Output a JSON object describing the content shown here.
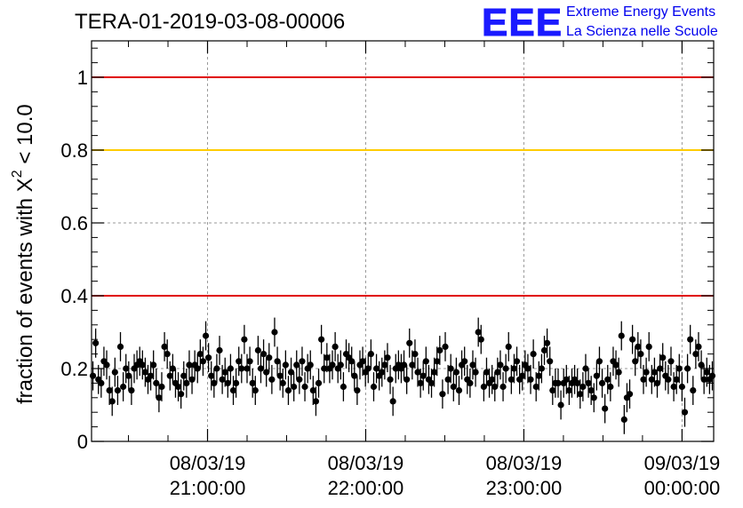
{
  "header": {
    "title": "TERA-01-2019-03-08-00006",
    "logo_mark": "EEE",
    "logo_line1": "Extreme Energy Events",
    "logo_line2": "La Scienza nelle Scuole"
  },
  "colors": {
    "red_line": "#e00000",
    "yellow_line": "#ffcc00",
    "points": "#000000",
    "grid": "#999999",
    "logo": "#1a1aff"
  },
  "chart_data": {
    "type": "scatter",
    "title": "TERA-01-2019-03-08-00006",
    "ylabel_main": "fraction of events with X",
    "ylabel_sup": "2",
    "ylabel_tail": " < 10.0",
    "xlabel": "",
    "x_start_minutes": 16,
    "x_end_minutes": 252,
    "ylim": [
      0,
      1.1
    ],
    "yticks": [
      {
        "value": 0,
        "label": "0"
      },
      {
        "value": 0.2,
        "label": "0.2"
      },
      {
        "value": 0.4,
        "label": "0.4"
      },
      {
        "value": 0.6,
        "label": "0.6"
      },
      {
        "value": 0.8,
        "label": "0.8"
      },
      {
        "value": 1,
        "label": "1"
      }
    ],
    "xticks": [
      {
        "minutes": 60,
        "date": "08/03/19",
        "time": "21:00:00"
      },
      {
        "minutes": 120,
        "date": "08/03/19",
        "time": "22:00:00"
      },
      {
        "minutes": 180,
        "date": "08/03/19",
        "time": "23:00:00"
      },
      {
        "minutes": 240,
        "date": "09/03/19",
        "time": "00:00:00"
      }
    ],
    "reference_lines": [
      {
        "y": 1.0,
        "color": "red"
      },
      {
        "y": 0.8,
        "color": "yellow"
      },
      {
        "y": 0.4,
        "color": "red"
      }
    ],
    "grid": true,
    "series": [
      {
        "error": 0.04,
        "y": [
          0.18,
          0.27,
          0.17,
          0.16,
          0.22,
          0.21,
          0.14,
          0.11,
          0.19,
          0.14,
          0.26,
          0.15,
          0.2,
          0.18,
          0.14,
          0.2,
          0.21,
          0.22,
          0.21,
          0.19,
          0.17,
          0.18,
          0.21,
          0.16,
          0.12,
          0.15,
          0.26,
          0.24,
          0.18,
          0.2,
          0.16,
          0.15,
          0.13,
          0.18,
          0.16,
          0.21,
          0.17,
          0.21,
          0.2,
          0.24,
          0.22,
          0.29,
          0.23,
          0.18,
          0.16,
          0.2,
          0.25,
          0.17,
          0.19,
          0.16,
          0.2,
          0.14,
          0.16,
          0.22,
          0.2,
          0.28,
          0.2,
          0.22,
          0.16,
          0.14,
          0.25,
          0.2,
          0.24,
          0.19,
          0.23,
          0.17,
          0.3,
          0.22,
          0.18,
          0.16,
          0.21,
          0.14,
          0.19,
          0.15,
          0.21,
          0.17,
          0.22,
          0.15,
          0.2,
          0.21,
          0.14,
          0.11,
          0.16,
          0.28,
          0.2,
          0.23,
          0.2,
          0.21,
          0.26,
          0.2,
          0.21,
          0.15,
          0.24,
          0.23,
          0.22,
          0.18,
          0.14,
          0.21,
          0.22,
          0.19,
          0.2,
          0.24,
          0.15,
          0.2,
          0.18,
          0.19,
          0.21,
          0.23,
          0.17,
          0.11,
          0.2,
          0.21,
          0.2,
          0.21,
          0.17,
          0.27,
          0.21,
          0.24,
          0.19,
          0.16,
          0.18,
          0.22,
          0.17,
          0.16,
          0.19,
          0.22,
          0.25,
          0.13,
          0.26,
          0.17,
          0.2,
          0.15,
          0.19,
          0.14,
          0.21,
          0.22,
          0.17,
          0.16,
          0.21,
          0.19,
          0.3,
          0.28,
          0.15,
          0.19,
          0.16,
          0.17,
          0.15,
          0.19,
          0.21,
          0.15,
          0.2,
          0.26,
          0.17,
          0.2,
          0.22,
          0.17,
          0.18,
          0.21,
          0.2,
          0.17,
          0.24,
          0.15,
          0.18,
          0.2,
          0.25,
          0.27,
          0.22,
          0.14,
          0.16,
          0.16,
          0.1,
          0.16,
          0.17,
          0.14,
          0.16,
          0.17,
          0.16,
          0.13,
          0.15,
          0.2,
          0.16,
          0.14,
          0.12,
          0.18,
          0.22,
          0.16,
          0.09,
          0.17,
          0.15,
          0.22,
          0.21,
          0.19,
          0.29,
          0.06,
          0.12,
          0.13,
          0.28,
          0.22,
          0.26,
          0.24,
          0.17,
          0.19,
          0.26,
          0.17,
          0.19,
          0.16,
          0.2,
          0.23,
          0.18,
          0.17,
          0.22,
          0.15,
          0.17,
          0.2,
          0.15,
          0.08,
          0.2,
          0.28,
          0.14,
          0.24,
          0.26,
          0.21,
          0.17,
          0.19,
          0.17,
          0.18
        ]
      }
    ]
  }
}
